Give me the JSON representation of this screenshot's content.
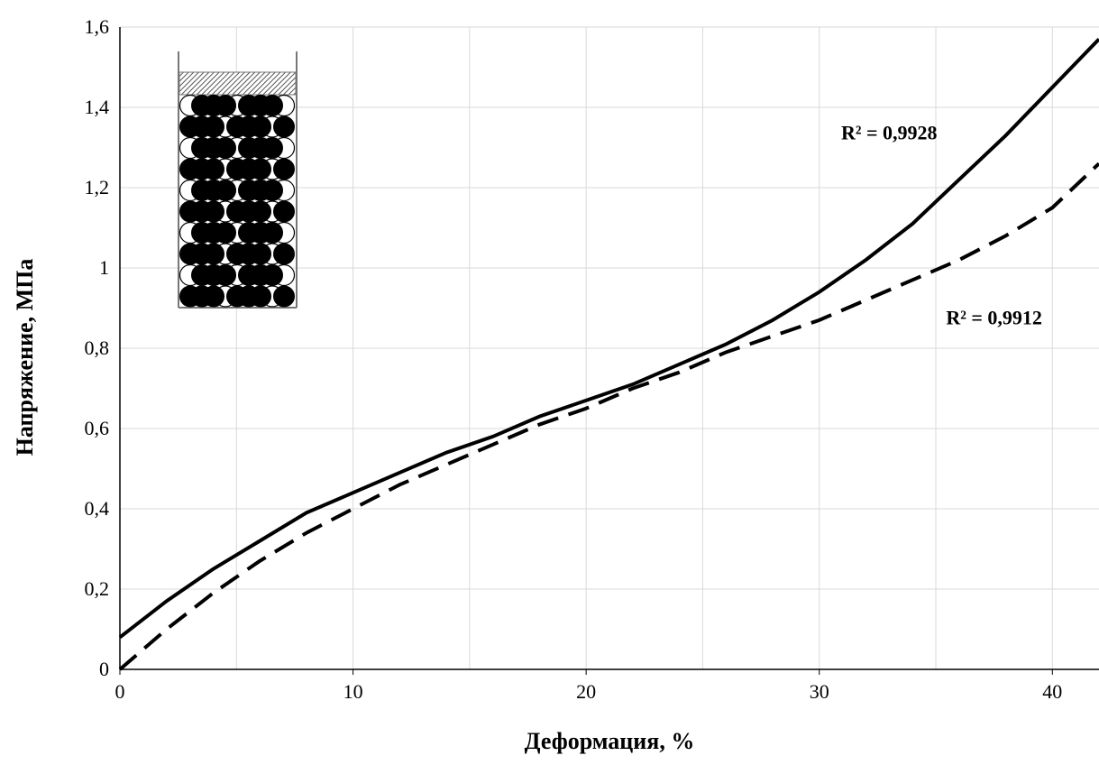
{
  "chart_data": {
    "type": "line",
    "x_label": "Деформация, %",
    "y_label": "Напряжение, МПа",
    "x": [
      0,
      2,
      4,
      6,
      8,
      10,
      12,
      14,
      16,
      18,
      20,
      22,
      24,
      26,
      28,
      30,
      32,
      34,
      36,
      38,
      40,
      42
    ],
    "series": [
      {
        "color": "#000000",
        "dash": "solid",
        "values": [
          0.08,
          0.17,
          0.25,
          0.32,
          0.39,
          0.44,
          0.49,
          0.54,
          0.58,
          0.63,
          0.67,
          0.71,
          0.76,
          0.81,
          0.87,
          0.94,
          1.02,
          1.11,
          1.22,
          1.33,
          1.45,
          1.57
        ]
      },
      {
        "color": "#000000",
        "dash": "dashed",
        "values": [
          0.0,
          0.1,
          0.19,
          0.27,
          0.34,
          0.4,
          0.46,
          0.51,
          0.56,
          0.61,
          0.65,
          0.7,
          0.74,
          0.79,
          0.83,
          0.87,
          0.92,
          0.97,
          1.02,
          1.08,
          1.15,
          1.26
        ]
      }
    ],
    "annotations": [
      {
        "text": "R² = 0,9928",
        "x": 33,
        "y": 1.32
      },
      {
        "text": "R² = 0,9912",
        "x": 37.5,
        "y": 0.86
      }
    ],
    "xlim": [
      0,
      42
    ],
    "ylim": [
      0,
      1.6
    ],
    "xticks": [
      0,
      10,
      20,
      30,
      40
    ],
    "x_gridlines": [
      5,
      10,
      15,
      20,
      25,
      30,
      35,
      40
    ],
    "yticks": [
      0,
      {
        "value": 0.2,
        "label": "0,2"
      },
      {
        "value": 0.4,
        "label": "0,4"
      },
      {
        "value": 0.6,
        "label": "0,6"
      },
      {
        "value": 0.8,
        "label": "0,8"
      },
      1,
      {
        "value": 1.2,
        "label": "1,2"
      },
      {
        "value": 1.4,
        "label": "1,4"
      },
      {
        "value": 1.6,
        "label": "1,6"
      }
    ],
    "grid": true
  }
}
